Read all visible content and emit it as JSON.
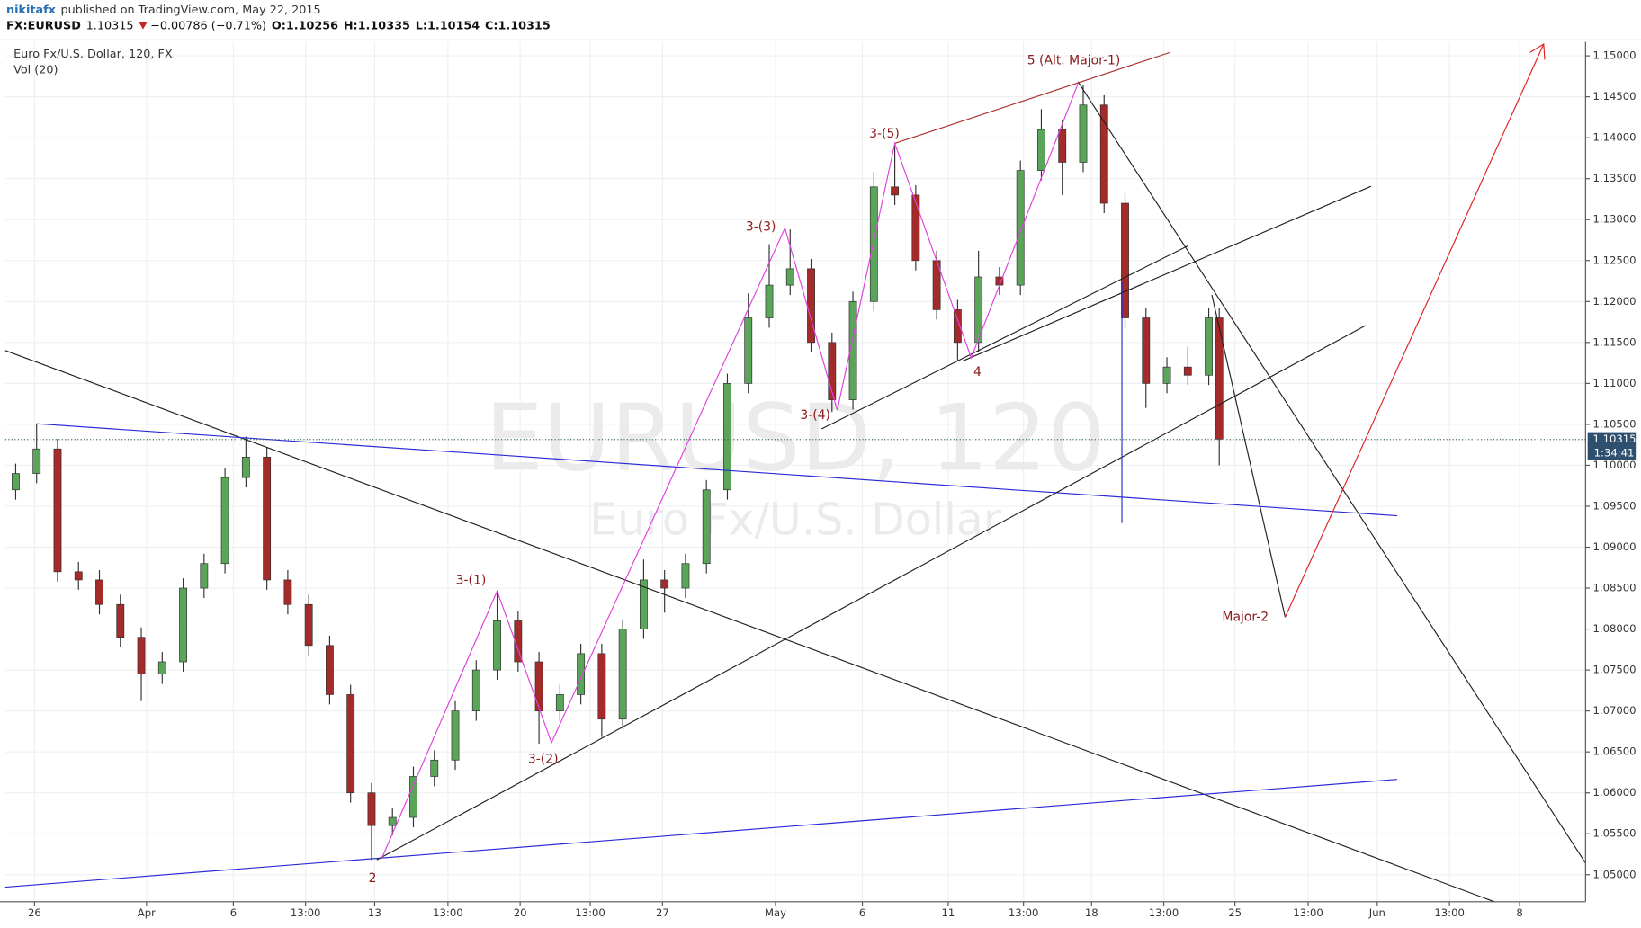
{
  "chart_data": {
    "type": "candlestick",
    "publisher": "nikitafx",
    "published": "published on TradingView.com, May 22, 2015",
    "quote": {
      "symbol": "FX:EURUSD",
      "last": "1.10315",
      "change": "−0.00786 (−0.71%)",
      "open": "O:1.10256",
      "high": "H:1.10335",
      "low": "L:1.10154",
      "close": "C:1.10315"
    },
    "title": "Euro Fx/U.S. Dollar, 120, FX",
    "subtitle": "Vol (20)",
    "watermark": "EURUSD, 120",
    "watermark_sub": "Euro Fx/U.S. Dollar",
    "annotations": [
      "5 (Alt. Major-1)",
      "3-(5)",
      "3-(3)",
      "3-(4)",
      "4",
      "3-(1)",
      "3-(2)",
      "2",
      "Major-2"
    ],
    "last_price": {
      "value": 1.10315,
      "label": "1.10315"
    },
    "countdown": "1:34:41",
    "up_color": "#5aa55a",
    "down_color": "#a52a2a",
    "grid": true,
    "x": [
      1,
      3,
      5,
      7,
      9,
      11,
      13,
      15,
      17,
      19,
      21,
      23,
      25,
      27,
      29,
      31,
      33,
      35,
      37,
      39,
      41,
      43,
      45,
      47,
      49,
      51,
      53,
      55,
      57,
      59,
      61,
      63,
      65,
      67,
      69,
      71,
      73,
      75,
      77,
      79,
      81,
      83,
      85,
      87,
      89,
      91,
      93,
      95,
      97,
      99,
      101,
      103,
      105,
      107,
      109,
      111,
      113,
      115,
      116
    ],
    "open": [
      1.097,
      1.099,
      1.102,
      1.087,
      1.086,
      1.083,
      1.079,
      1.0745,
      1.076,
      1.085,
      1.088,
      1.0985,
      1.101,
      1.086,
      1.083,
      1.078,
      1.072,
      1.06,
      1.056,
      1.057,
      1.062,
      1.064,
      1.07,
      1.075,
      1.081,
      1.076,
      1.07,
      1.072,
      1.077,
      1.069,
      1.08,
      1.086,
      1.085,
      1.088,
      1.097,
      1.11,
      1.118,
      1.122,
      1.124,
      1.115,
      1.108,
      1.12,
      1.134,
      1.133,
      1.125,
      1.119,
      1.115,
      1.123,
      1.122,
      1.136,
      1.141,
      1.137,
      1.144,
      1.132,
      1.118,
      1.11,
      1.112,
      1.111,
      1.118
    ],
    "high": [
      1.1002,
      1.105,
      1.1032,
      1.0882,
      1.0872,
      1.0842,
      1.0802,
      1.0772,
      1.0862,
      1.0892,
      1.0997,
      1.1035,
      1.1022,
      1.0872,
      1.0842,
      1.0792,
      1.0732,
      1.0612,
      1.0582,
      1.0632,
      1.0652,
      1.0712,
      1.0762,
      1.0847,
      1.0822,
      1.0772,
      1.0732,
      1.0782,
      1.0782,
      1.0812,
      1.0885,
      1.0872,
      1.0892,
      1.0982,
      1.1112,
      1.121,
      1.127,
      1.1288,
      1.1252,
      1.1162,
      1.1212,
      1.1358,
      1.139,
      1.1342,
      1.1262,
      1.1202,
      1.1262,
      1.1242,
      1.1372,
      1.1435,
      1.1422,
      1.1465,
      1.1452,
      1.1332,
      1.1192,
      1.1132,
      1.1145,
      1.1192,
      1.1192
    ],
    "low": [
      1.0958,
      1.0978,
      1.0858,
      1.0848,
      1.0818,
      1.0778,
      1.0712,
      1.0733,
      1.0748,
      1.0838,
      1.0868,
      1.0973,
      1.0848,
      1.0818,
      1.0768,
      1.0708,
      1.0588,
      1.0518,
      1.0548,
      1.0558,
      1.0608,
      1.0628,
      1.0688,
      1.0738,
      1.0748,
      1.066,
      1.0688,
      1.0708,
      1.0668,
      1.0678,
      1.0788,
      1.082,
      1.0838,
      1.0868,
      1.0958,
      1.1088,
      1.1168,
      1.1208,
      1.1138,
      1.1065,
      1.1068,
      1.1188,
      1.1318,
      1.1238,
      1.1178,
      1.1128,
      1.1138,
      1.1208,
      1.1208,
      1.1348,
      1.133,
      1.1358,
      1.1308,
      1.1168,
      1.107,
      1.1088,
      1.1098,
      1.1098,
      1.1
    ],
    "close": [
      1.099,
      1.102,
      1.087,
      1.086,
      1.083,
      1.079,
      1.0745,
      1.076,
      1.085,
      1.088,
      1.0985,
      1.101,
      1.086,
      1.083,
      1.078,
      1.072,
      1.06,
      1.056,
      1.057,
      1.062,
      1.064,
      1.07,
      1.075,
      1.081,
      1.076,
      1.07,
      1.072,
      1.077,
      1.069,
      1.08,
      1.086,
      1.085,
      1.088,
      1.097,
      1.11,
      1.118,
      1.122,
      1.124,
      1.115,
      1.108,
      1.12,
      1.134,
      1.133,
      1.125,
      1.119,
      1.115,
      1.123,
      1.122,
      1.136,
      1.141,
      1.137,
      1.144,
      1.132,
      1.118,
      1.11,
      1.112,
      1.111,
      1.118,
      1.1032
    ],
    "xlim": [
      0,
      151
    ],
    "xticks": [
      {
        "value": 2.8,
        "label": "26"
      },
      {
        "value": 13.5,
        "label": "Apr"
      },
      {
        "value": 21.8,
        "label": "6"
      },
      {
        "value": 28.7,
        "label": "13:00"
      },
      {
        "value": 35.3,
        "label": "13"
      },
      {
        "value": 42.3,
        "label": "13:00"
      },
      {
        "value": 49.2,
        "label": "20"
      },
      {
        "value": 55.9,
        "label": "13:00"
      },
      {
        "value": 62.8,
        "label": "27"
      },
      {
        "value": 73.6,
        "label": "May"
      },
      {
        "value": 81.9,
        "label": "6"
      },
      {
        "value": 90.1,
        "label": "11"
      },
      {
        "value": 97.3,
        "label": "13:00"
      },
      {
        "value": 103.8,
        "label": "18"
      },
      {
        "value": 110.7,
        "label": "13:00"
      },
      {
        "value": 117.5,
        "label": "25"
      },
      {
        "value": 124.5,
        "label": "13:00"
      },
      {
        "value": 131.1,
        "label": "Jun"
      },
      {
        "value": 138,
        "label": "13:00"
      },
      {
        "value": 144.7,
        "label": "8"
      }
    ],
    "ylim": [
      1.0467,
      1.1517
    ],
    "yticks": [
      {
        "value": 1.05,
        "label": "1.05000"
      },
      {
        "value": 1.055,
        "label": "1.05500"
      },
      {
        "value": 1.06,
        "label": "1.06000"
      },
      {
        "value": 1.065,
        "label": "1.06500"
      },
      {
        "value": 1.07,
        "label": "1.07000"
      },
      {
        "value": 1.075,
        "label": "1.07500"
      },
      {
        "value": 1.08,
        "label": "1.08000"
      },
      {
        "value": 1.085,
        "label": "1.08500"
      },
      {
        "value": 1.09,
        "label": "1.09000"
      },
      {
        "value": 1.095,
        "label": "1.09500"
      },
      {
        "value": 1.1,
        "label": "1.10000"
      },
      {
        "value": 1.105,
        "label": "1.10500"
      },
      {
        "value": 1.11,
        "label": "1.11000"
      },
      {
        "value": 1.115,
        "label": "1.11500"
      },
      {
        "value": 1.12,
        "label": "1.12000"
      },
      {
        "value": 1.125,
        "label": "1.12500"
      },
      {
        "value": 1.13,
        "label": "1.13000"
      },
      {
        "value": 1.135,
        "label": "1.13500"
      },
      {
        "value": 1.14,
        "label": "1.14000"
      },
      {
        "value": 1.145,
        "label": "1.14500"
      },
      {
        "value": 1.15,
        "label": "1.15000"
      }
    ]
  }
}
